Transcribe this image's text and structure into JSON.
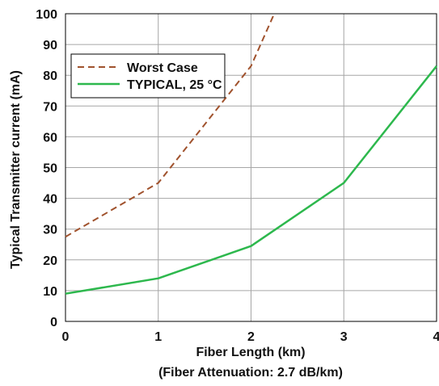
{
  "chart_data": {
    "type": "line",
    "title": "",
    "xlabel": "Fiber Length (km)",
    "xlabel_sub": "(Fiber Attenuation: 2.7 dB/km)",
    "ylabel": "Typical Transmitter current (mA)",
    "xlim": [
      0,
      4
    ],
    "ylim": [
      0,
      100
    ],
    "x_ticks": [
      "0",
      "1",
      "2",
      "3",
      "4"
    ],
    "y_ticks": [
      "0",
      "10",
      "20",
      "30",
      "40",
      "50",
      "60",
      "70",
      "80",
      "90",
      "100"
    ],
    "grid": true,
    "legend_position": "top-left",
    "series": [
      {
        "name": "Worst Case",
        "style": "dashed",
        "color": "#a0522d",
        "x": [
          0,
          1,
          2,
          2.25
        ],
        "y": [
          27.5,
          45,
          83,
          100
        ]
      },
      {
        "name": "TYPICAL, 25 °C",
        "style": "solid",
        "color": "#2db84d",
        "x": [
          0,
          1,
          2,
          3,
          4
        ],
        "y": [
          9,
          14,
          24.5,
          45,
          83
        ]
      }
    ]
  }
}
